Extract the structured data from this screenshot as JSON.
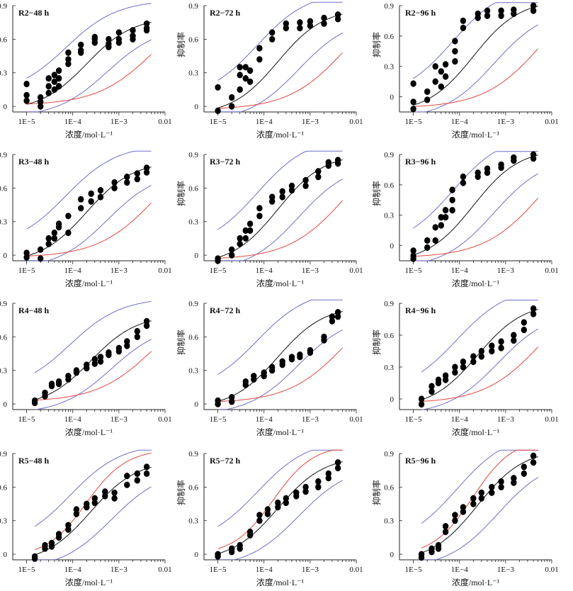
{
  "panels_layout": {
    "rows": 4,
    "cols": 3
  },
  "axis_text": {
    "xlabel": "浓度/mol·L⁻¹",
    "ylabel": "抑制率",
    "xticks": [
      "1E−5",
      "1E−4",
      "1E−3",
      "0.01"
    ],
    "yticks": [
      "0",
      "0.3",
      "0.6",
      "0.9"
    ]
  },
  "colors": {
    "fit": "#111111",
    "ci": "#6f6fc9",
    "reference": "#e3463f",
    "points": "#000000"
  },
  "chart_data": [
    {
      "type": "scatter",
      "title": "R2−48 h",
      "ylabel": "",
      "xscale": "log",
      "xlim": [
        5e-06,
        0.01
      ],
      "ylim": [
        -0.05,
        0.9
      ],
      "x": [
        1e-05,
        1e-05,
        1e-05,
        2e-05,
        2e-05,
        2e-05,
        3e-05,
        3e-05,
        3e-05,
        4e-05,
        4e-05,
        4e-05,
        5e-05,
        5e-05,
        5e-05,
        8e-05,
        8e-05,
        8e-05,
        0.00015,
        0.00015,
        0.00015,
        0.0003,
        0.0003,
        0.0003,
        0.0006,
        0.0006,
        0.0006,
        0.001,
        0.001,
        0.001,
        0.002,
        0.002,
        0.002,
        0.004,
        0.004,
        0.004
      ],
      "y": [
        0.2,
        0.1,
        0.05,
        0.08,
        0.04,
        0.0,
        0.25,
        0.18,
        0.12,
        0.28,
        0.22,
        0.15,
        0.32,
        0.25,
        0.18,
        0.48,
        0.42,
        0.38,
        0.55,
        0.5,
        0.48,
        0.62,
        0.6,
        0.57,
        0.6,
        0.56,
        0.53,
        0.66,
        0.6,
        0.57,
        0.68,
        0.63,
        0.6,
        0.74,
        0.7,
        0.68
      ]
    },
    {
      "type": "scatter",
      "title": "R2−72 h",
      "ylabel": "抑制率",
      "xscale": "log",
      "xlim": [
        5e-06,
        0.01
      ],
      "ylim": [
        -0.05,
        0.9
      ],
      "x": [
        1e-05,
        1e-05,
        2e-05,
        2e-05,
        3e-05,
        3e-05,
        3e-05,
        4e-05,
        4e-05,
        5e-05,
        5e-05,
        8e-05,
        8e-05,
        0.00015,
        0.00015,
        0.0003,
        0.0003,
        0.0006,
        0.0006,
        0.001,
        0.001,
        0.002,
        0.002,
        0.004,
        0.004
      ],
      "y": [
        0.17,
        -0.04,
        0.08,
        0.0,
        0.35,
        0.28,
        0.15,
        0.35,
        0.25,
        0.32,
        0.22,
        0.52,
        0.42,
        0.66,
        0.6,
        0.74,
        0.7,
        0.75,
        0.7,
        0.76,
        0.72,
        0.79,
        0.74,
        0.82,
        0.78
      ]
    },
    {
      "type": "scatter",
      "title": "R2−96 h",
      "ylabel": "抑制率",
      "xscale": "log",
      "xlim": [
        5e-06,
        0.01
      ],
      "ylim": [
        -0.15,
        0.9
      ],
      "x": [
        1e-05,
        1e-05,
        1e-05,
        2e-05,
        2e-05,
        3e-05,
        3e-05,
        4e-05,
        4e-05,
        5e-05,
        5e-05,
        8e-05,
        8e-05,
        8e-05,
        0.00012,
        0.00012,
        0.00025,
        0.00025,
        0.0004,
        0.0004,
        0.0008,
        0.0008,
        0.0015,
        0.0015,
        0.004,
        0.004
      ],
      "y": [
        0.13,
        -0.05,
        -0.12,
        0.05,
        -0.03,
        0.3,
        0.15,
        0.25,
        0.1,
        0.32,
        0.2,
        0.55,
        0.45,
        0.35,
        0.75,
        0.68,
        0.82,
        0.78,
        0.85,
        0.8,
        0.85,
        0.8,
        0.86,
        0.82,
        0.9,
        0.85
      ]
    },
    {
      "type": "scatter",
      "title": "R3−48 h",
      "ylabel": "",
      "xscale": "log",
      "xlim": [
        5e-06,
        0.01
      ],
      "ylim": [
        -0.05,
        0.9
      ],
      "x": [
        1e-05,
        1e-05,
        2e-05,
        2e-05,
        3e-05,
        3e-05,
        4e-05,
        4e-05,
        5e-05,
        5e-05,
        8e-05,
        8e-05,
        0.00015,
        0.00015,
        0.00025,
        0.00025,
        0.0004,
        0.0004,
        0.0008,
        0.0008,
        0.0015,
        0.0015,
        0.0025,
        0.0025,
        0.004,
        0.004
      ],
      "y": [
        0.02,
        -0.02,
        0.05,
        -0.03,
        0.15,
        0.1,
        0.2,
        0.15,
        0.28,
        0.25,
        0.35,
        0.2,
        0.5,
        0.42,
        0.55,
        0.48,
        0.58,
        0.52,
        0.65,
        0.6,
        0.7,
        0.65,
        0.73,
        0.68,
        0.78,
        0.74
      ]
    },
    {
      "type": "scatter",
      "title": "R3−72 h",
      "ylabel": "抑制率",
      "xscale": "log",
      "xlim": [
        5e-06,
        0.01
      ],
      "ylim": [
        -0.05,
        0.9
      ],
      "x": [
        1e-05,
        1e-05,
        2e-05,
        2e-05,
        3e-05,
        3e-05,
        4e-05,
        4e-05,
        5e-05,
        5e-05,
        8e-05,
        8e-05,
        0.00015,
        0.00015,
        0.00025,
        0.00025,
        0.0004,
        0.0004,
        0.0008,
        0.0008,
        0.0015,
        0.0015,
        0.0025,
        0.0025,
        0.004,
        0.004
      ],
      "y": [
        -0.03,
        -0.05,
        0.05,
        0.0,
        0.15,
        0.1,
        0.22,
        0.15,
        0.28,
        0.22,
        0.42,
        0.35,
        0.52,
        0.48,
        0.57,
        0.52,
        0.62,
        0.58,
        0.67,
        0.62,
        0.75,
        0.7,
        0.83,
        0.8,
        0.85,
        0.82
      ]
    },
    {
      "type": "scatter",
      "title": "R3−96 h",
      "ylabel": "抑制率",
      "xscale": "log",
      "xlim": [
        5e-06,
        0.01
      ],
      "ylim": [
        -0.15,
        0.9
      ],
      "x": [
        1e-05,
        1e-05,
        1e-05,
        2e-05,
        2e-05,
        3e-05,
        3e-05,
        4e-05,
        4e-05,
        5e-05,
        5e-05,
        7e-05,
        7e-05,
        7e-05,
        0.00012,
        0.00012,
        0.00025,
        0.00025,
        0.0004,
        0.0004,
        0.0008,
        0.0008,
        0.0015,
        0.0015,
        0.004,
        0.004
      ],
      "y": [
        -0.05,
        -0.1,
        -0.13,
        0.05,
        -0.02,
        0.18,
        0.05,
        0.28,
        0.2,
        0.35,
        0.28,
        0.55,
        0.45,
        0.35,
        0.68,
        0.62,
        0.72,
        0.68,
        0.76,
        0.72,
        0.8,
        0.77,
        0.87,
        0.84,
        0.9,
        0.86
      ]
    },
    {
      "type": "scatter",
      "title": "R4−48 h",
      "ylabel": "",
      "xscale": "log",
      "xlim": [
        5e-06,
        0.01
      ],
      "ylim": [
        -0.05,
        0.9
      ],
      "x": [
        1.5e-05,
        1.5e-05,
        2.5e-05,
        2.5e-05,
        3.5e-05,
        3.5e-05,
        5e-05,
        5e-05,
        8e-05,
        8e-05,
        0.00012,
        0.00012,
        0.0002,
        0.0002,
        0.0003,
        0.0003,
        0.0004,
        0.0004,
        0.0006,
        0.0006,
        0.001,
        0.001,
        0.0015,
        0.0015,
        0.0025,
        0.0025,
        0.004,
        0.004
      ],
      "y": [
        0.03,
        0.01,
        0.1,
        0.07,
        0.18,
        0.16,
        0.2,
        0.18,
        0.25,
        0.22,
        0.3,
        0.28,
        0.35,
        0.32,
        0.4,
        0.36,
        0.42,
        0.38,
        0.46,
        0.44,
        0.5,
        0.47,
        0.56,
        0.52,
        0.65,
        0.6,
        0.74,
        0.7
      ]
    },
    {
      "type": "scatter",
      "title": "R4−72 h",
      "ylabel": "抑制率",
      "xscale": "log",
      "xlim": [
        5e-06,
        0.01
      ],
      "ylim": [
        -0.05,
        0.9
      ],
      "x": [
        1e-05,
        1e-05,
        2e-05,
        2e-05,
        4e-05,
        4e-05,
        6e-05,
        6e-05,
        0.0001,
        0.0001,
        0.00015,
        0.00015,
        0.00025,
        0.00025,
        0.0004,
        0.0004,
        0.0006,
        0.0006,
        0.001,
        0.001,
        0.002,
        0.002,
        0.003,
        0.003,
        0.004,
        0.004
      ],
      "y": [
        0.03,
        0.0,
        0.06,
        0.02,
        0.2,
        0.17,
        0.25,
        0.22,
        0.28,
        0.25,
        0.33,
        0.3,
        0.38,
        0.35,
        0.42,
        0.4,
        0.44,
        0.42,
        0.48,
        0.46,
        0.6,
        0.57,
        0.78,
        0.74,
        0.82,
        0.78
      ]
    },
    {
      "type": "scatter",
      "title": "R4−96 h",
      "ylabel": "抑制率",
      "xscale": "log",
      "xlim": [
        5e-06,
        0.01
      ],
      "ylim": [
        -0.1,
        0.9
      ],
      "x": [
        1.5e-05,
        1.5e-05,
        2.5e-05,
        2.5e-05,
        3.5e-05,
        3.5e-05,
        5e-05,
        5e-05,
        8e-05,
        8e-05,
        0.00012,
        0.00012,
        0.0002,
        0.0002,
        0.0003,
        0.0003,
        0.0005,
        0.0005,
        0.0008,
        0.0008,
        0.0015,
        0.0015,
        0.0025,
        0.0025,
        0.004,
        0.004
      ],
      "y": [
        0.0,
        -0.05,
        0.12,
        0.07,
        0.18,
        0.15,
        0.22,
        0.18,
        0.3,
        0.25,
        0.35,
        0.3,
        0.4,
        0.35,
        0.45,
        0.4,
        0.5,
        0.45,
        0.54,
        0.48,
        0.6,
        0.55,
        0.72,
        0.65,
        0.85,
        0.8
      ]
    },
    {
      "type": "scatter",
      "title": "R5−48 h",
      "ylabel": "",
      "xscale": "log",
      "xlim": [
        5e-06,
        0.01
      ],
      "ylim": [
        -0.05,
        0.9
      ],
      "x": [
        1.5e-05,
        1.5e-05,
        2.5e-05,
        2.5e-05,
        3.5e-05,
        3.5e-05,
        5e-05,
        5e-05,
        8e-05,
        8e-05,
        0.00012,
        0.00012,
        0.0002,
        0.0002,
        0.0003,
        0.0003,
        0.0005,
        0.0005,
        0.0008,
        0.0008,
        0.0015,
        0.0015,
        0.0025,
        0.0025,
        0.004,
        0.004
      ],
      "y": [
        -0.02,
        -0.04,
        0.08,
        0.05,
        0.1,
        0.07,
        0.18,
        0.15,
        0.26,
        0.22,
        0.4,
        0.36,
        0.45,
        0.42,
        0.5,
        0.46,
        0.56,
        0.52,
        0.55,
        0.5,
        0.7,
        0.62,
        0.72,
        0.66,
        0.78,
        0.72
      ]
    },
    {
      "type": "scatter",
      "title": "R5−72 h",
      "ylabel": "抑制率",
      "xscale": "log",
      "xlim": [
        5e-06,
        0.01
      ],
      "ylim": [
        -0.05,
        0.9
      ],
      "x": [
        1e-05,
        1e-05,
        2e-05,
        2e-05,
        3e-05,
        3e-05,
        5e-05,
        5e-05,
        8e-05,
        8e-05,
        0.00012,
        0.00012,
        0.0002,
        0.0002,
        0.0003,
        0.0003,
        0.0005,
        0.0005,
        0.0008,
        0.0008,
        0.0015,
        0.0015,
        0.0025,
        0.0025,
        0.004,
        0.004
      ],
      "y": [
        0.0,
        -0.02,
        0.05,
        0.02,
        0.08,
        0.05,
        0.2,
        0.17,
        0.35,
        0.3,
        0.4,
        0.36,
        0.46,
        0.42,
        0.5,
        0.46,
        0.55,
        0.52,
        0.6,
        0.56,
        0.65,
        0.6,
        0.72,
        0.68,
        0.82,
        0.77
      ]
    },
    {
      "type": "scatter",
      "title": "R5−96 h",
      "ylabel": "抑制率",
      "xscale": "log",
      "xlim": [
        5e-06,
        0.01
      ],
      "ylim": [
        -0.05,
        0.9
      ],
      "x": [
        1.5e-05,
        1.5e-05,
        2.5e-05,
        2.5e-05,
        3.5e-05,
        3.5e-05,
        5e-05,
        5e-05,
        8e-05,
        8e-05,
        0.00012,
        0.00012,
        0.0002,
        0.0002,
        0.0003,
        0.0003,
        0.0005,
        0.0005,
        0.0008,
        0.0008,
        0.0015,
        0.0015,
        0.0025,
        0.0025,
        0.004,
        0.004
      ],
      "y": [
        0.0,
        -0.03,
        0.05,
        0.02,
        0.08,
        0.05,
        0.25,
        0.2,
        0.35,
        0.3,
        0.42,
        0.38,
        0.5,
        0.45,
        0.55,
        0.5,
        0.6,
        0.55,
        0.65,
        0.6,
        0.68,
        0.64,
        0.78,
        0.72,
        0.88,
        0.82
      ]
    }
  ]
}
